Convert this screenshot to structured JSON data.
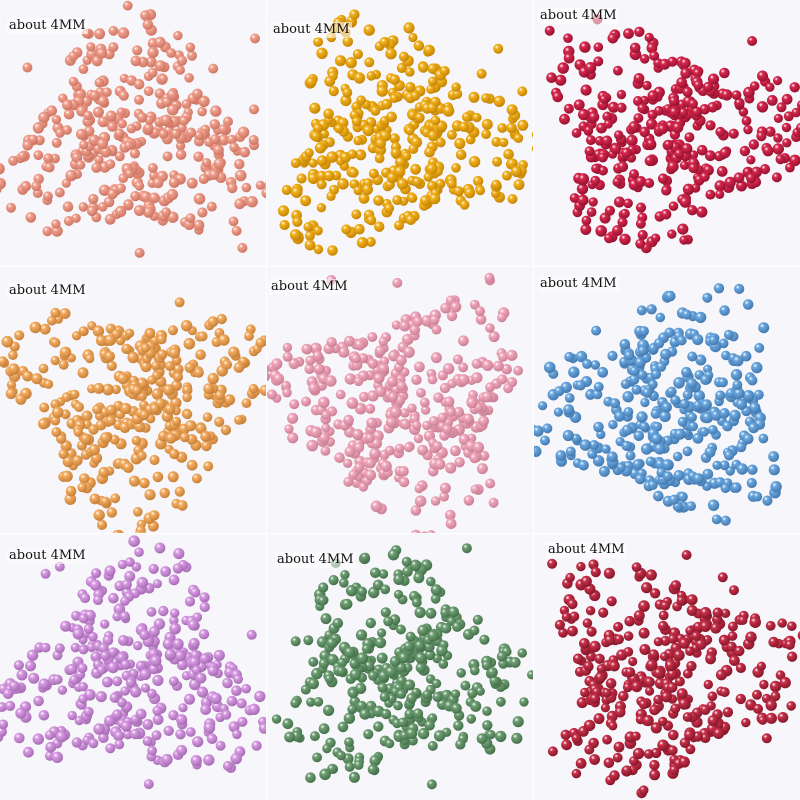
{
  "tiles": [
    {
      "label": "about 4MM",
      "color": "#f2a08e",
      "dark": "#c8705e",
      "labelPos": "top-left"
    },
    {
      "label": "about 4MM",
      "color": "#f2b21e",
      "dark": "#c07f00",
      "labelPos": "top-left"
    },
    {
      "label": "about 4MM",
      "color": "#d8284e",
      "dark": "#8e0f2c",
      "labelPos": "top-left"
    },
    {
      "label": "about 4MM",
      "color": "#f4ad62",
      "dark": "#c17a33",
      "labelPos": "top-left"
    },
    {
      "label": "about 4MM",
      "color": "#f1a9bd",
      "dark": "#c57a90",
      "labelPos": "top-left"
    },
    {
      "label": "about 4MM",
      "color": "#6aa8e0",
      "dark": "#3f73a8",
      "labelPos": "top-left"
    },
    {
      "label": "about 4MM",
      "color": "#d79be2",
      "dark": "#a066ae",
      "labelPos": "top-left"
    },
    {
      "label": "about 4MM",
      "color": "#6f9f74",
      "dark": "#3f6b45",
      "labelPos": "top-left"
    },
    {
      "label": "about 4MM",
      "color": "#c8304a",
      "dark": "#7e1426",
      "labelPos": "top-left"
    }
  ]
}
